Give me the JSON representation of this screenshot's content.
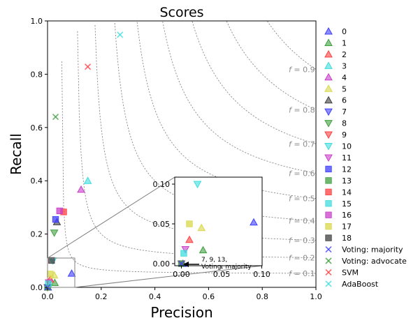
{
  "chart_data": {
    "type": "scatter",
    "title": "Scores",
    "xlabel": "Precision",
    "ylabel": "Recall",
    "xlim": [
      0,
      1
    ],
    "ylim": [
      0,
      1
    ],
    "xticks": [
      "0.0",
      "0.2",
      "0.4",
      "0.6",
      "0.8",
      "1.0"
    ],
    "yticks": [
      "0.0",
      "0.2",
      "0.4",
      "0.6",
      "0.8",
      "1.0"
    ],
    "grid": false,
    "legend_position": "right",
    "f_curves": [
      0.1,
      0.2,
      0.3,
      0.4,
      0.5,
      0.6,
      0.7,
      0.8,
      0.9
    ],
    "f_label_prefix": "f = ",
    "series": [
      {
        "name": "0",
        "marker": "triangle-up",
        "color": "#3f3fff",
        "points": [
          [
            0.09,
            0.052
          ],
          [
            0.002,
            0.0
          ]
        ]
      },
      {
        "name": "1",
        "marker": "triangle-up",
        "color": "#3fa03f",
        "points": [
          [
            0.027,
            0.017
          ]
        ]
      },
      {
        "name": "2",
        "marker": "triangle-up",
        "color": "#ff3f3f",
        "points": [
          [
            0.01,
            0.03
          ]
        ]
      },
      {
        "name": "3",
        "marker": "triangle-up",
        "color": "#3fdcdc",
        "points": [
          [
            0.15,
            0.4
          ]
        ]
      },
      {
        "name": "4",
        "marker": "triangle-up",
        "color": "#c83fc8",
        "points": [
          [
            0.125,
            0.367
          ]
        ]
      },
      {
        "name": "5",
        "marker": "triangle-up",
        "color": "#d8d84a",
        "points": [
          [
            0.025,
            0.045
          ]
        ]
      },
      {
        "name": "6",
        "marker": "triangle-up",
        "color": "#404040",
        "points": [
          [
            0.035,
            0.245
          ]
        ]
      },
      {
        "name": "7",
        "marker": "triangle-down",
        "color": "#3f3fff",
        "points": [
          [
            0.0,
            0.0
          ]
        ]
      },
      {
        "name": "8",
        "marker": "triangle-down",
        "color": "#3fa03f",
        "points": [
          [
            0.025,
            0.205
          ]
        ]
      },
      {
        "name": "9",
        "marker": "triangle-down",
        "color": "#ff3f3f",
        "points": [
          [
            0.0,
            0.0
          ]
        ]
      },
      {
        "name": "10",
        "marker": "triangle-down",
        "color": "#3fdcdc",
        "points": [
          [
            0.02,
            0.1
          ]
        ]
      },
      {
        "name": "11",
        "marker": "triangle-down",
        "color": "#c83fc8",
        "points": [
          [
            0.005,
            0.018
          ]
        ]
      },
      {
        "name": "12",
        "marker": "square",
        "color": "#3f3fff",
        "points": [
          [
            0.03,
            0.255
          ]
        ]
      },
      {
        "name": "13",
        "marker": "square",
        "color": "#3fa03f",
        "points": [
          [
            0.0,
            0.0
          ]
        ]
      },
      {
        "name": "14",
        "marker": "square",
        "color": "#ff3f3f",
        "points": [
          [
            0.06,
            0.283
          ]
        ]
      },
      {
        "name": "15",
        "marker": "square",
        "color": "#3fdcdc",
        "points": [
          [
            0.003,
            0.013
          ]
        ]
      },
      {
        "name": "16",
        "marker": "square",
        "color": "#c83fc8",
        "points": [
          [
            0.045,
            0.287
          ]
        ]
      },
      {
        "name": "17",
        "marker": "square",
        "color": "#d8d84a",
        "points": [
          [
            0.01,
            0.05
          ]
        ]
      },
      {
        "name": "18",
        "marker": "square",
        "color": "#404040",
        "points": [
          [
            0.015,
            0.101
          ]
        ]
      },
      {
        "name": "Voting: majority",
        "marker": "x",
        "color": "#3f3fff",
        "points": [
          [
            0.0,
            0.0
          ]
        ]
      },
      {
        "name": "Voting: advocate",
        "marker": "x",
        "color": "#3fa03f",
        "points": [
          [
            0.03,
            0.64
          ]
        ]
      },
      {
        "name": "SVM",
        "marker": "x",
        "color": "#ff3f3f",
        "points": [
          [
            0.15,
            0.828
          ]
        ]
      },
      {
        "name": "AdaBoost",
        "marker": "x",
        "color": "#3fdcdc",
        "points": [
          [
            0.27,
            0.948
          ]
        ]
      }
    ],
    "inset": {
      "xlim": [
        0,
        0.1
      ],
      "ylim": [
        0,
        0.1
      ],
      "xticks": [
        "0.00",
        "0.05",
        "0.10"
      ],
      "yticks": [
        "0.00",
        "0.05",
        "0.10"
      ],
      "annotation": {
        "lines": [
          "7, 9, 13,",
          "Voting: majority"
        ],
        "target": [
          0.0,
          0.0
        ]
      }
    }
  }
}
